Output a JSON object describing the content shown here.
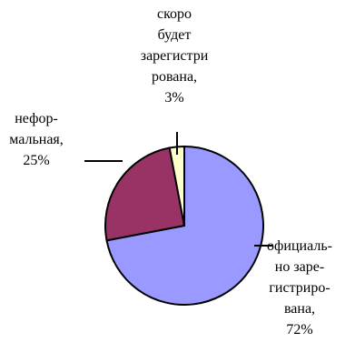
{
  "chart_data": {
    "type": "pie",
    "title": "",
    "slices": [
      {
        "label_lines": [
          "официаль-",
          "но заре-",
          "гистриро-",
          "вана,",
          "72%"
        ],
        "value": 72,
        "color": "#9999ff"
      },
      {
        "label_lines": [
          "нефор-",
          "мальная,",
          "25%"
        ],
        "value": 25,
        "color": "#993366"
      },
      {
        "label_lines": [
          "скоро",
          "будет",
          "зарегистри",
          "рована,",
          "3%"
        ],
        "value": 3,
        "color": "#ffffcc"
      }
    ],
    "legend": "none"
  }
}
